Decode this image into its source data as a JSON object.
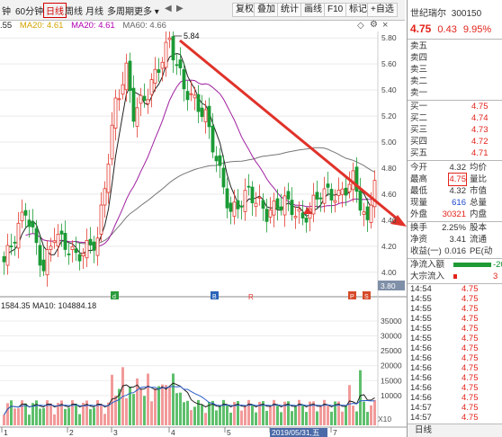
{
  "topbar": {
    "tabs": [
      {
        "label": "钟"
      },
      {
        "label": "60分钟"
      },
      {
        "label": "日线"
      },
      {
        "label": "周线"
      },
      {
        "label": "月线"
      },
      {
        "label": "多周期"
      },
      {
        "label": "更多 ▾"
      }
    ],
    "buttons": [
      "复权",
      "叠加",
      "统计",
      "画线",
      "F10",
      "标记",
      "+自选"
    ],
    "nav_arrows": [
      "◀",
      "▶"
    ]
  },
  "ma_line": {
    "prefix": ".55",
    "ma20": "MA20: 4.61",
    "ma20b": "MA20: 4.61",
    "ma60": "MA60: 4.66"
  },
  "chart_controls": {
    "toggle": "◇",
    "settings": "⚙",
    "close": "×"
  },
  "chart_data": {
    "type": "candlestick",
    "y_ticks": [
      "5.80",
      "5.60",
      "5.40",
      "5.20",
      "5.00",
      "4.80",
      "4.60",
      "4.40",
      "4.20",
      "4.00"
    ],
    "ylim": [
      3.95,
      5.85
    ],
    "high_label": "5.84",
    "current_price_label": "3.80",
    "x_ticks": [
      "1",
      "2",
      "3",
      "4",
      "5",
      "2019/05/31,五",
      "7"
    ],
    "volume": {
      "label": "1584.35 MA10: 104884.18",
      "y_ticks": [
        "35000",
        "30000",
        "25000",
        "20000",
        "15000",
        "10000"
      ],
      "unit_label": "X10"
    },
    "event_markers": [
      "d",
      "B",
      "R",
      "P",
      "S"
    ]
  },
  "stock": {
    "name": "世纪瑞尔",
    "code": "300150",
    "price": "4.75",
    "change": "0.43",
    "change_pct": "9.95%",
    "sells": [
      {
        "label": "卖五",
        "price": ""
      },
      {
        "label": "卖四",
        "price": ""
      },
      {
        "label": "卖三",
        "price": ""
      },
      {
        "label": "卖二",
        "price": ""
      },
      {
        "label": "卖一",
        "price": ""
      }
    ],
    "buys": [
      {
        "label": "买一",
        "price": "4.75"
      },
      {
        "label": "买二",
        "price": "4.74"
      },
      {
        "label": "买三",
        "price": "4.73"
      },
      {
        "label": "买四",
        "price": "4.72"
      },
      {
        "label": "买五",
        "price": "4.71"
      }
    ],
    "stats": [
      {
        "label": "今开",
        "value": "4.32",
        "label2": "均价"
      },
      {
        "label": "最高",
        "value": "4.75",
        "label2": "量比"
      },
      {
        "label": "最低",
        "value": "4.32",
        "label2": "市值"
      },
      {
        "label": "现量",
        "value": "616",
        "label2": "总量"
      },
      {
        "label": "外盘",
        "value": "30321",
        "label2": "内盘"
      },
      {
        "label": "换手",
        "value": "2.25%",
        "label2": "股本"
      },
      {
        "label": "净资",
        "value": "3.41",
        "label2": "流通"
      },
      {
        "label": "收益(一)",
        "value": "0.016",
        "label2": "PE(动"
      }
    ],
    "flow": [
      {
        "label": "净流入额",
        "value": "-20"
      },
      {
        "label": "大宗流入",
        "value": "3"
      }
    ],
    "ticks": [
      {
        "time": "14:54",
        "price": "4.75"
      },
      {
        "time": "14:55",
        "price": "4.75"
      },
      {
        "time": "14:55",
        "price": "4.75"
      },
      {
        "time": "14:55",
        "price": "4.75"
      },
      {
        "time": "14:55",
        "price": "4.75"
      },
      {
        "time": "14:55",
        "price": "4.75"
      },
      {
        "time": "14:56",
        "price": "4.75"
      },
      {
        "time": "14:56",
        "price": "4.75"
      },
      {
        "time": "14:56",
        "price": "4.75"
      },
      {
        "time": "14:56",
        "price": "4.75"
      },
      {
        "time": "14:56",
        "price": "4.75"
      },
      {
        "time": "14:56",
        "price": "4.75"
      },
      {
        "time": "14:57",
        "price": "4.75"
      },
      {
        "time": "14:57",
        "price": "4.75"
      }
    ],
    "bottom_label": "日线"
  }
}
